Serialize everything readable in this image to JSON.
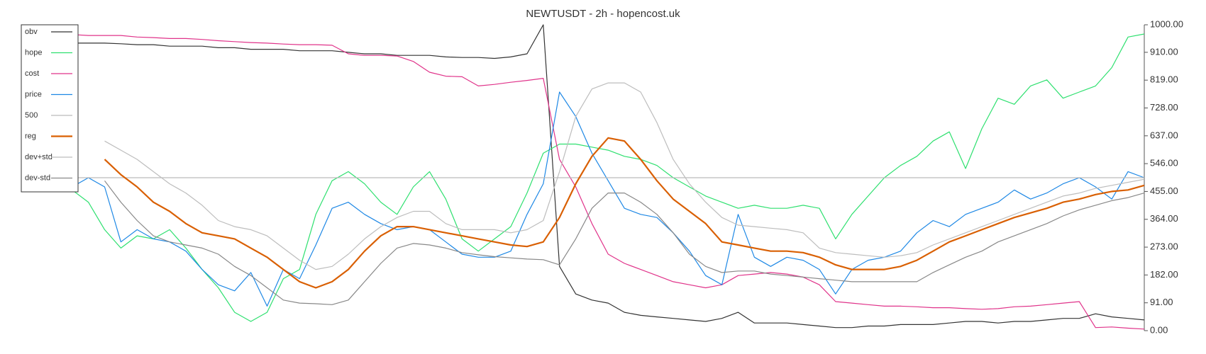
{
  "chart_data": {
    "type": "line",
    "title": "NEWTUSDT - 2h - hopencost.uk",
    "ylim": [
      0,
      1000
    ],
    "yticks": [
      {
        "value": 0,
        "label": "0.00"
      },
      {
        "value": 91,
        "label": "91.00"
      },
      {
        "value": 182,
        "label": "182.00"
      },
      {
        "value": 273,
        "label": "273.00"
      },
      {
        "value": 364,
        "label": "364.00"
      },
      {
        "value": 455,
        "label": "455.00"
      },
      {
        "value": 546,
        "label": "546.00"
      },
      {
        "value": 637,
        "label": "637.00"
      },
      {
        "value": 728,
        "label": "728.00"
      },
      {
        "value": 819,
        "label": "819.00"
      },
      {
        "value": 910,
        "label": "910.00"
      },
      {
        "value": 1000,
        "label": "1000.00"
      }
    ],
    "y_axis_side": "right",
    "legend": "upper left",
    "series": [
      {
        "name": "obv",
        "color": "#333333",
        "width": 1.2,
        "values": [
          955,
          950,
          945,
          940,
          940,
          940,
          938,
          935,
          935,
          930,
          930,
          930,
          925,
          925,
          920,
          920,
          920,
          915,
          915,
          915,
          910,
          905,
          905,
          900,
          900,
          900,
          895,
          893,
          893,
          890,
          895,
          905,
          1000,
          210,
          120,
          100,
          90,
          60,
          50,
          45,
          40,
          35,
          30,
          40,
          60,
          25,
          25,
          25,
          20,
          15,
          10,
          10,
          15,
          15,
          20,
          20,
          20,
          25,
          30,
          30,
          25,
          30,
          30,
          35,
          40,
          40,
          55,
          45,
          40,
          35
        ]
      },
      {
        "name": "hope",
        "color": "#2ee06f",
        "width": 1.2,
        "values": [
          null,
          null,
          null,
          460,
          420,
          330,
          270,
          310,
          300,
          330,
          270,
          200,
          140,
          60,
          30,
          60,
          170,
          200,
          380,
          490,
          520,
          480,
          420,
          380,
          470,
          520,
          430,
          300,
          260,
          300,
          340,
          450,
          580,
          610,
          610,
          600,
          590,
          570,
          560,
          540,
          500,
          470,
          440,
          420,
          400,
          410,
          400,
          400,
          410,
          400,
          300,
          380,
          440,
          500,
          540,
          570,
          620,
          650,
          530,
          660,
          760,
          740,
          800,
          820,
          760,
          780,
          800,
          860,
          960,
          970
        ]
      },
      {
        "name": "cost",
        "color": "#e0338a",
        "width": 1.2,
        "values": [
          975,
          970,
          970,
          968,
          965,
          965,
          965,
          960,
          958,
          955,
          955,
          952,
          948,
          945,
          942,
          940,
          937,
          935,
          935,
          933,
          905,
          900,
          900,
          898,
          880,
          845,
          832,
          830,
          800,
          805,
          812,
          818,
          825,
          560,
          470,
          350,
          250,
          220,
          200,
          180,
          160,
          150,
          140,
          150,
          180,
          185,
          190,
          185,
          175,
          150,
          95,
          90,
          85,
          80,
          80,
          78,
          75,
          75,
          72,
          70,
          72,
          78,
          80,
          85,
          90,
          95,
          10,
          12,
          8,
          5
        ]
      },
      {
        "name": "price",
        "color": "#1e88e5",
        "width": 1.2,
        "values": [
          null,
          null,
          null,
          470,
          500,
          470,
          290,
          330,
          300,
          290,
          260,
          200,
          150,
          130,
          190,
          80,
          200,
          170,
          280,
          400,
          420,
          380,
          350,
          330,
          340,
          330,
          290,
          250,
          240,
          240,
          260,
          380,
          480,
          780,
          700,
          580,
          490,
          400,
          380,
          370,
          320,
          260,
          180,
          150,
          380,
          240,
          210,
          240,
          230,
          200,
          120,
          200,
          230,
          240,
          260,
          320,
          360,
          340,
          380,
          400,
          420,
          460,
          430,
          450,
          480,
          500,
          470,
          430,
          520,
          500
        ]
      },
      {
        "name": "500",
        "color": "#bbbbbb",
        "width": 1.2,
        "values": [
          500,
          500,
          500,
          500,
          500,
          500,
          500,
          500,
          500,
          500,
          500,
          500,
          500,
          500,
          500,
          500,
          500,
          500,
          500,
          500,
          500,
          500,
          500,
          500,
          500,
          500,
          500,
          500,
          500,
          500,
          500,
          500,
          500,
          500,
          500,
          500,
          500,
          500,
          500,
          500,
          500,
          500,
          500,
          500,
          500,
          500,
          500,
          500,
          500,
          500,
          500,
          500,
          500,
          500,
          500,
          500,
          500,
          500,
          500,
          500,
          500,
          500,
          500,
          500,
          500,
          500,
          500,
          500,
          500,
          500
        ]
      },
      {
        "name": "reg",
        "color": "#d95f02",
        "width": 2.2,
        "values": [
          null,
          null,
          null,
          null,
          null,
          560,
          510,
          470,
          420,
          390,
          350,
          320,
          310,
          300,
          270,
          240,
          200,
          160,
          140,
          160,
          200,
          260,
          310,
          340,
          340,
          330,
          320,
          310,
          300,
          290,
          280,
          275,
          290,
          370,
          480,
          570,
          630,
          620,
          560,
          490,
          430,
          390,
          350,
          290,
          280,
          270,
          260,
          260,
          255,
          240,
          215,
          200,
          200,
          200,
          210,
          230,
          260,
          290,
          310,
          330,
          350,
          370,
          385,
          400,
          420,
          430,
          445,
          455,
          460,
          475
        ]
      },
      {
        "name": "dev+std",
        "color": "#bdbdbd",
        "width": 1.2,
        "values": [
          null,
          null,
          null,
          null,
          null,
          620,
          590,
          560,
          520,
          480,
          450,
          410,
          360,
          340,
          330,
          310,
          270,
          230,
          200,
          210,
          250,
          300,
          340,
          370,
          390,
          390,
          350,
          330,
          330,
          330,
          320,
          330,
          360,
          520,
          700,
          790,
          810,
          810,
          780,
          680,
          560,
          480,
          420,
          370,
          345,
          340,
          335,
          330,
          320,
          270,
          255,
          250,
          245,
          240,
          245,
          255,
          280,
          300,
          320,
          340,
          360,
          380,
          400,
          420,
          440,
          450,
          465,
          475,
          485,
          495
        ]
      },
      {
        "name": "dev-std",
        "color": "#888888",
        "width": 1.2,
        "values": [
          null,
          null,
          null,
          null,
          null,
          490,
          420,
          360,
          310,
          290,
          280,
          270,
          250,
          210,
          180,
          140,
          100,
          90,
          88,
          85,
          100,
          160,
          220,
          270,
          285,
          280,
          270,
          255,
          248,
          242,
          238,
          234,
          232,
          215,
          300,
          400,
          450,
          450,
          420,
          380,
          320,
          250,
          210,
          190,
          195,
          195,
          185,
          180,
          175,
          170,
          165,
          160,
          160,
          160,
          160,
          160,
          190,
          215,
          240,
          260,
          290,
          310,
          330,
          350,
          375,
          395,
          410,
          425,
          435,
          450
        ]
      }
    ]
  }
}
